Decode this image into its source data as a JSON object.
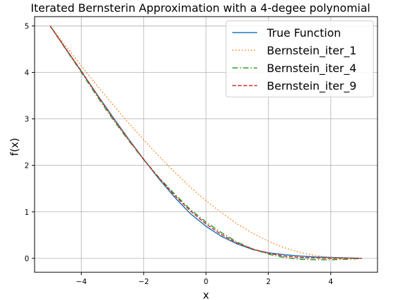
{
  "chart_data": {
    "type": "line",
    "title": "Iterated Bernsterin Approximation with a 4-degee polynomial",
    "xlabel": "x",
    "ylabel": "f(x)",
    "xlim": [
      -5.5,
      5.5
    ],
    "ylim": [
      -0.3,
      5.2
    ],
    "xticks": [
      -4,
      -2,
      0,
      2,
      4
    ],
    "yticks": [
      0,
      1,
      2,
      3,
      4,
      5
    ],
    "grid": true,
    "legend_position": "top-right",
    "series": [
      {
        "name": "True Function",
        "color": "#1f77b4",
        "style": "solid",
        "x": [
          -5,
          -4.5,
          -4,
          -3.5,
          -3,
          -2.5,
          -2,
          -1.5,
          -1,
          -0.5,
          0,
          0.5,
          1,
          1.5,
          2,
          2.5,
          3,
          3.5,
          4,
          4.5,
          5
        ],
        "y": [
          5.0,
          4.51,
          4.02,
          3.53,
          3.05,
          2.58,
          2.13,
          1.7,
          1.31,
          0.96,
          0.69,
          0.47,
          0.31,
          0.19,
          0.12,
          0.08,
          0.05,
          0.03,
          0.02,
          0.01,
          0.0
        ]
      },
      {
        "name": "Bernstein_iter_1",
        "color": "#ff7f0e",
        "style": "dotted",
        "x": [
          -5,
          -4.5,
          -4,
          -3.5,
          -3,
          -2.5,
          -2,
          -1.5,
          -1,
          -0.5,
          0,
          0.5,
          1,
          1.5,
          2,
          2.5,
          3,
          3.5,
          4,
          4.5,
          5
        ],
        "y": [
          5.0,
          4.57,
          4.14,
          3.72,
          3.32,
          2.92,
          2.55,
          2.19,
          1.85,
          1.53,
          1.24,
          0.98,
          0.74,
          0.54,
          0.37,
          0.23,
          0.13,
          0.06,
          0.02,
          0.005,
          0.0
        ]
      },
      {
        "name": "Bernstein_iter_4",
        "color": "#2ca02c",
        "style": "dashdot",
        "x": [
          -5,
          -4.5,
          -4,
          -3.5,
          -3,
          -2.5,
          -2,
          -1.5,
          -1,
          -0.5,
          0,
          0.5,
          1,
          1.5,
          2,
          2.5,
          3,
          3.5,
          4,
          4.5,
          5
        ],
        "y": [
          5.0,
          4.5,
          4.0,
          3.49,
          3.0,
          2.55,
          2.12,
          1.73,
          1.38,
          1.05,
          0.78,
          0.55,
          0.35,
          0.2,
          0.09,
          0.02,
          -0.02,
          -0.03,
          -0.03,
          -0.02,
          0.0
        ]
      },
      {
        "name": "Bernstein_iter_9",
        "color": "#d62728",
        "style": "dashed",
        "x": [
          -5,
          -4.5,
          -4,
          -3.5,
          -3,
          -2.5,
          -2,
          -1.5,
          -1,
          -0.5,
          0,
          0.5,
          1,
          1.5,
          2,
          2.5,
          3,
          3.5,
          4,
          4.5,
          5
        ],
        "y": [
          5.0,
          4.51,
          4.03,
          3.52,
          3.03,
          2.57,
          2.13,
          1.72,
          1.35,
          1.02,
          0.74,
          0.51,
          0.33,
          0.2,
          0.11,
          0.05,
          0.02,
          0.01,
          0.0,
          0.0,
          0.0
        ]
      }
    ]
  }
}
